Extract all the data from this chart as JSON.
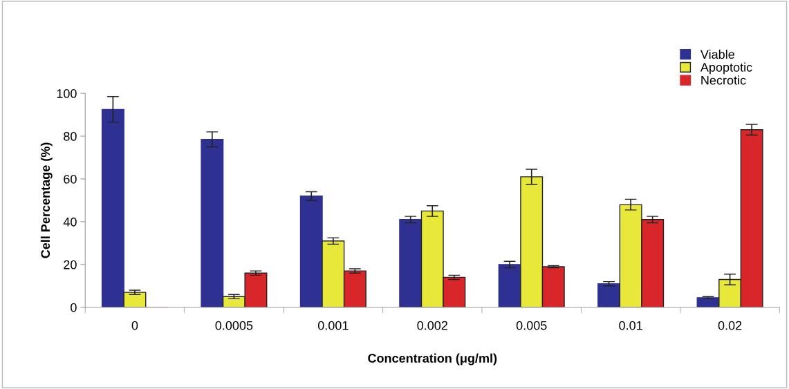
{
  "chart_data": {
    "type": "bar",
    "xlabel": "Concentration (μg/ml)",
    "ylabel": "Cell Percentage (%)",
    "categories": [
      "0",
      "0.0005",
      "0.001",
      "0.002",
      "0.005",
      "0.01",
      "0.02"
    ],
    "series": [
      {
        "name": "Viable",
        "color": "#2e3192",
        "values": [
          92.5,
          78.5,
          52,
          41,
          20,
          11,
          4.5
        ],
        "errors": [
          6,
          3.5,
          2,
          1.5,
          1.5,
          1,
          0.5
        ]
      },
      {
        "name": "Apoptotic",
        "color": "#e8e83a",
        "values": [
          7,
          5,
          31,
          45,
          61,
          48,
          13
        ],
        "errors": [
          1,
          1,
          1.5,
          2.5,
          3.5,
          2.5,
          2.5
        ]
      },
      {
        "name": "Necrotic",
        "color": "#d8262a",
        "values": [
          0,
          16,
          17,
          14,
          19,
          41,
          83
        ],
        "errors": [
          null,
          1,
          1,
          1,
          0.5,
          1.5,
          2.5
        ]
      }
    ],
    "ylim": [
      0,
      100
    ],
    "yticks": [
      0,
      20,
      40,
      60,
      80,
      100
    ],
    "grid": false,
    "legend": "top right"
  }
}
